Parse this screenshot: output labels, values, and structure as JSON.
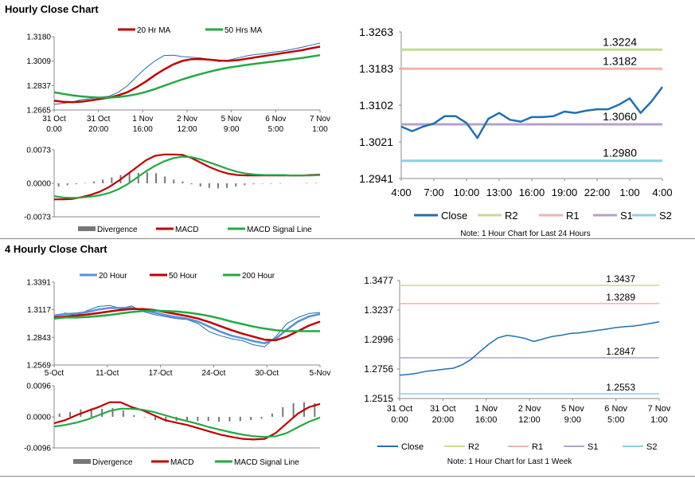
{
  "sections": {
    "hourly_title": "Hourly Close Chart",
    "four_hourly_title": "4 Hourly Close Chart"
  },
  "colors": {
    "close": "#1f6fb3",
    "ma_red": "#c00000",
    "ma_green": "#22aa44",
    "ma_blue": "#5b8fd4",
    "divergence": "#777777",
    "r2": "#c5db8f",
    "r1": "#f0b3ae",
    "s1": "#b3a2cb",
    "s2": "#8ccfe3",
    "axis": "#888888"
  },
  "chart_data": [
    {
      "id": "hourly_price",
      "type": "line",
      "legend": [
        "20 Hr MA",
        "50 Hrs MA"
      ],
      "ylim": [
        1.2665,
        1.318
      ],
      "yticks": [
        "1.3180",
        "1.3009",
        "1.2837",
        "1.2665"
      ],
      "xticks": [
        [
          "31 Oct",
          "0:00"
        ],
        [
          "31 Oct",
          "20:00"
        ],
        [
          "1 Nov",
          "16:00"
        ],
        [
          "2 Nov",
          "12:00"
        ],
        [
          "5 Nov",
          "9:00"
        ],
        [
          "6 Nov",
          "5:00"
        ],
        [
          "7 Nov",
          "1:00"
        ]
      ],
      "series": [
        {
          "name": "Close",
          "values": [
            1.2705,
            1.2712,
            1.2722,
            1.2738,
            1.2745,
            1.2755,
            1.2762,
            1.279,
            1.2835,
            1.29,
            1.296,
            1.301,
            1.3048,
            1.305,
            1.304,
            1.3035,
            1.303,
            1.302,
            1.3005,
            1.3015,
            1.303,
            1.3045,
            1.3055,
            1.306,
            1.3072,
            1.308,
            1.3092,
            1.3105,
            1.312,
            1.3135
          ]
        },
        {
          "name": "20 Hr MA",
          "values": [
            1.273,
            1.2722,
            1.272,
            1.2724,
            1.2732,
            1.2742,
            1.2752,
            1.2768,
            1.279,
            1.2825,
            1.2865,
            1.291,
            1.295,
            1.2985,
            1.301,
            1.3022,
            1.3022,
            1.3018,
            1.3012,
            1.301,
            1.3015,
            1.3025,
            1.3035,
            1.3045,
            1.3055,
            1.3065,
            1.3075,
            1.3085,
            1.3098,
            1.311
          ]
        },
        {
          "name": "50 Hrs MA",
          "values": [
            1.279,
            1.2778,
            1.2768,
            1.276,
            1.2755,
            1.2752,
            1.2752,
            1.2756,
            1.2764,
            1.2776,
            1.2792,
            1.2812,
            1.2835,
            1.2858,
            1.288,
            1.29,
            1.2918,
            1.2935,
            1.295,
            1.2962,
            1.2972,
            1.2982,
            1.299,
            1.2998,
            1.3006,
            1.3014,
            1.3022,
            1.303,
            1.304,
            1.305
          ]
        }
      ]
    },
    {
      "id": "hourly_macd",
      "type": "line",
      "legend": [
        "Divergence",
        "MACD",
        "MACD Signal Line"
      ],
      "ylim": [
        -0.0073,
        0.0073
      ],
      "yticks": [
        "0.0073",
        "0.0000",
        "-0.0073"
      ],
      "series": [
        {
          "name": "MACD",
          "values": [
            -0.0035,
            -0.0035,
            -0.0034,
            -0.003,
            -0.0025,
            -0.0018,
            -0.0008,
            0.0005,
            0.002,
            0.0035,
            0.005,
            0.006,
            0.0063,
            0.0063,
            0.0062,
            0.0055,
            0.0045,
            0.0035,
            0.0027,
            0.0021,
            0.0018,
            0.0017,
            0.0017,
            0.0017,
            0.0017,
            0.0017,
            0.0017,
            0.0017,
            0.0018,
            0.0019
          ]
        },
        {
          "name": "MACD Signal Line",
          "values": [
            -0.0028,
            -0.0031,
            -0.0032,
            -0.0031,
            -0.0029,
            -0.0026,
            -0.0021,
            -0.0013,
            -0.0002,
            0.0012,
            0.0026,
            0.0038,
            0.0048,
            0.0055,
            0.0058,
            0.0057,
            0.0052,
            0.0045,
            0.0038,
            0.0031,
            0.0025,
            0.0021,
            0.0019,
            0.0018,
            0.0018,
            0.0018,
            0.0017,
            0.0017,
            0.0017,
            0.0018
          ]
        },
        {
          "name": "Divergence",
          "values": [
            -0.0007,
            -0.0004,
            -0.0002,
            0.0001,
            0.0004,
            0.0008,
            0.0013,
            0.0018,
            0.0022,
            0.0023,
            0.0024,
            0.0022,
            0.0015,
            0.0008,
            0.0004,
            -0.0002,
            -0.0007,
            -0.001,
            -0.0011,
            -0.001,
            -0.0007,
            -0.0004,
            -0.0002,
            -0.0001,
            -0.0001,
            -0.0001,
            0.0,
            0.0,
            0.0001,
            0.0001
          ]
        }
      ]
    },
    {
      "id": "hourly_levels",
      "type": "line",
      "ylim": [
        1.2941,
        1.3263
      ],
      "yticks": [
        "1.3263",
        "1.3183",
        "1.3102",
        "1.3021",
        "1.2941"
      ],
      "xticks": [
        "4:00",
        "7:00",
        "10:00",
        "13:00",
        "16:00",
        "19:00",
        "22:00",
        "1:00",
        "4:00"
      ],
      "levels": [
        {
          "name": "R2",
          "value": 1.3224,
          "label": "1.3224"
        },
        {
          "name": "R1",
          "value": 1.3182,
          "label": "1.3182"
        },
        {
          "name": "S1",
          "value": 1.306,
          "label": "1.3060"
        },
        {
          "name": "S2",
          "value": 1.298,
          "label": "1.2980"
        }
      ],
      "series": [
        {
          "name": "Close",
          "values": [
            1.3055,
            1.3045,
            1.3055,
            1.3062,
            1.3078,
            1.3078,
            1.3063,
            1.303,
            1.3072,
            1.3085,
            1.307,
            1.3066,
            1.3076,
            1.3076,
            1.3078,
            1.3088,
            1.3085,
            1.309,
            1.3093,
            1.3093,
            1.3103,
            1.3117,
            1.3085,
            1.311,
            1.3142
          ]
        }
      ],
      "legend": [
        "Close",
        "R2",
        "R1",
        "S1",
        "S2"
      ],
      "note": "Note: 1 Hour Chart for Last 24 Hours"
    },
    {
      "id": "four_hourly_price",
      "type": "line",
      "legend": [
        "20 Hour",
        "50 Hour",
        "200 Hour"
      ],
      "ylim": [
        1.2569,
        1.3391
      ],
      "yticks": [
        "1.3391",
        "1.3117",
        "1.2843",
        "1.2569"
      ],
      "xticks": [
        "5-Oct",
        "11-Oct",
        "17-Oct",
        "24-Oct",
        "30-Oct",
        "5-Nov"
      ],
      "series": [
        {
          "name": "Close",
          "values": [
            1.305,
            1.3085,
            1.306,
            1.311,
            1.315,
            1.316,
            1.313,
            1.3155,
            1.31,
            1.307,
            1.305,
            1.303,
            1.302,
            1.298,
            1.29,
            1.286,
            1.283,
            1.281,
            1.277,
            1.275,
            1.285,
            1.298,
            1.304,
            1.308,
            1.309
          ]
        },
        {
          "name": "20 Hour",
          "values": [
            1.306,
            1.3075,
            1.308,
            1.3095,
            1.312,
            1.3135,
            1.3135,
            1.3135,
            1.3115,
            1.309,
            1.3065,
            1.3045,
            1.303,
            1.3,
            1.295,
            1.29,
            1.286,
            1.2835,
            1.2805,
            1.2785,
            1.283,
            1.292,
            1.3,
            1.305,
            1.3075
          ]
        },
        {
          "name": "50 Hour",
          "values": [
            1.304,
            1.305,
            1.306,
            1.307,
            1.3085,
            1.31,
            1.3115,
            1.3125,
            1.3125,
            1.3115,
            1.3095,
            1.3075,
            1.3055,
            1.303,
            1.2995,
            1.2955,
            1.2915,
            1.288,
            1.285,
            1.282,
            1.2815,
            1.285,
            1.2905,
            1.296,
            1.3
          ]
        },
        {
          "name": "200 Hour",
          "values": [
            1.303,
            1.304,
            1.304,
            1.3045,
            1.3055,
            1.3065,
            1.308,
            1.3095,
            1.3105,
            1.311,
            1.3105,
            1.31,
            1.309,
            1.3075,
            1.3055,
            1.303,
            1.3,
            1.2975,
            1.295,
            1.293,
            1.2915,
            1.2905,
            1.2905,
            1.2905,
            1.2905
          ]
        }
      ]
    },
    {
      "id": "four_hourly_macd",
      "type": "line",
      "legend": [
        "Divergence",
        "MACD",
        "MACD Signal Line"
      ],
      "ylim": [
        -0.0096,
        0.0096
      ],
      "yticks": [
        "0.0096",
        "0.0000",
        "-0.0096"
      ],
      "series": [
        {
          "name": "MACD",
          "values": [
            -0.002,
            -0.001,
            0.0005,
            0.0018,
            0.003,
            0.0045,
            0.0045,
            0.003,
            0.002,
            0.0005,
            -0.001,
            -0.0018,
            -0.0025,
            -0.0035,
            -0.0045,
            -0.0055,
            -0.0062,
            -0.0068,
            -0.007,
            -0.0068,
            -0.005,
            -0.002,
            0.001,
            0.003,
            0.004
          ]
        },
        {
          "name": "MACD Signal Line",
          "values": [
            -0.003,
            -0.0025,
            -0.0018,
            -0.0008,
            0.0005,
            0.0018,
            0.0025,
            0.0025,
            0.0022,
            0.0015,
            0.0005,
            -0.0005,
            -0.0013,
            -0.0022,
            -0.0032,
            -0.004,
            -0.0048,
            -0.0055,
            -0.006,
            -0.0062,
            -0.006,
            -0.005,
            -0.0032,
            -0.0015,
            -0.0002
          ]
        },
        {
          "name": "Divergence",
          "values": [
            0.001,
            0.0015,
            0.0023,
            0.0026,
            0.0025,
            0.0027,
            0.002,
            0.0005,
            -0.0002,
            -0.001,
            -0.0015,
            -0.0013,
            -0.0012,
            -0.0013,
            -0.0013,
            -0.0015,
            -0.0014,
            -0.0013,
            -0.001,
            -0.0006,
            0.001,
            0.003,
            0.0042,
            0.0045,
            0.0042
          ]
        }
      ]
    },
    {
      "id": "weekly_levels",
      "type": "line",
      "ylim": [
        1.2515,
        1.3477
      ],
      "yticks": [
        "1.3477",
        "1.3237",
        "1.2996",
        "1.2756",
        "1.2515"
      ],
      "xticks": [
        [
          "31 Oct",
          "0:00"
        ],
        [
          "31 Oct",
          "20:00"
        ],
        [
          "1 Nov",
          "16:00"
        ],
        [
          "2 Nov",
          "12:00"
        ],
        [
          "5 Nov",
          "9:00"
        ],
        [
          "6 Nov",
          "5:00"
        ],
        [
          "7 Nov",
          "1:00"
        ]
      ],
      "levels": [
        {
          "name": "R2",
          "value": 1.3437,
          "label": "1.3437"
        },
        {
          "name": "R1",
          "value": 1.3289,
          "label": "1.3289"
        },
        {
          "name": "S1",
          "value": 1.2847,
          "label": "1.2847"
        },
        {
          "name": "S2",
          "value": 1.2553,
          "label": "1.2553"
        }
      ],
      "series": [
        {
          "name": "Close",
          "values": [
            1.2705,
            1.2712,
            1.2722,
            1.2738,
            1.2745,
            1.2755,
            1.2762,
            1.279,
            1.2835,
            1.29,
            1.296,
            1.301,
            1.303,
            1.302,
            1.3005,
            1.298,
            1.3,
            1.302,
            1.303,
            1.3045,
            1.305,
            1.306,
            1.307,
            1.308,
            1.3092,
            1.31,
            1.3105,
            1.3115,
            1.3128,
            1.314
          ]
        }
      ],
      "legend": [
        "Close",
        "R2",
        "R1",
        "S1",
        "S2"
      ],
      "note": "Note: 1 Hour Chart for Last 1 Week"
    }
  ]
}
